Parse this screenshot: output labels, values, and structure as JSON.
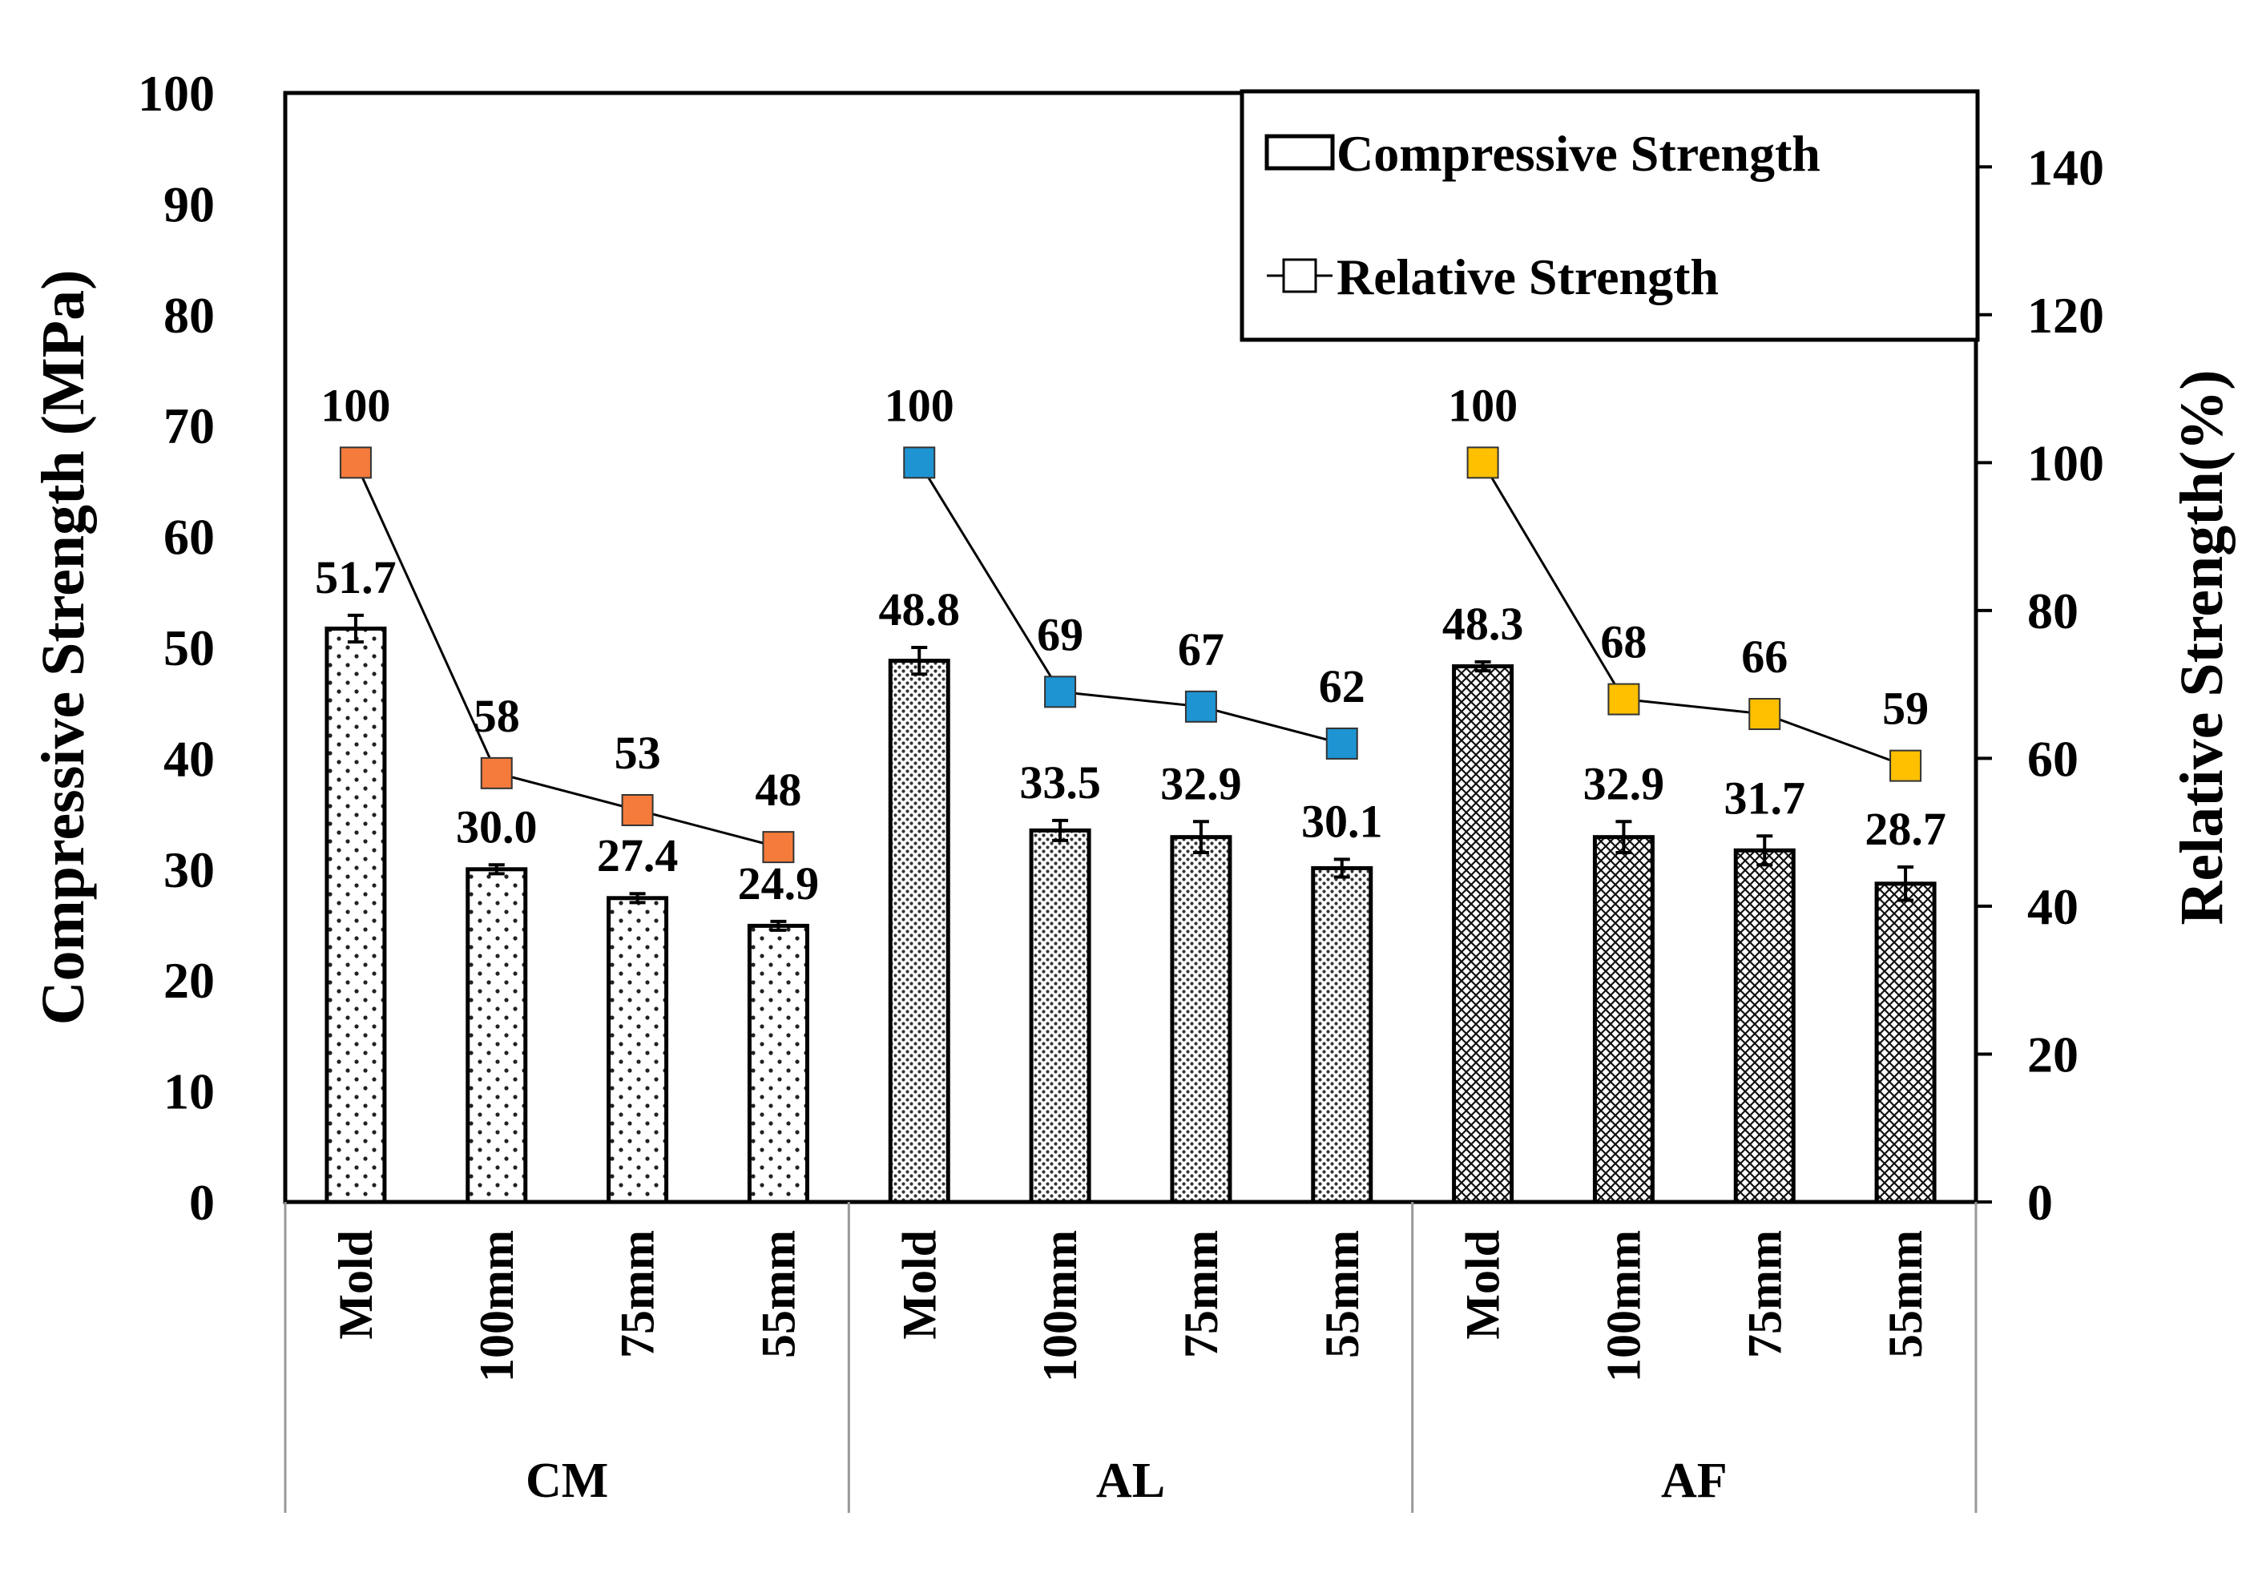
{
  "chart_data": {
    "type": "bar",
    "groups": [
      {
        "name": "CM",
        "categories": [
          "Mold",
          "100mm",
          "75mm",
          "55mm"
        ],
        "compressive": [
          51.7,
          30.0,
          27.4,
          24.9
        ],
        "error": [
          1.2,
          0.4,
          0.4,
          0.4
        ],
        "relative": [
          100,
          58,
          53,
          48
        ],
        "color": "#F47B3B",
        "pattern": "sparse-dots"
      },
      {
        "name": "AL",
        "categories": [
          "Mold",
          "100mm",
          "75mm",
          "55mm"
        ],
        "compressive": [
          48.8,
          33.5,
          32.9,
          30.1
        ],
        "error": [
          1.2,
          0.9,
          1.4,
          0.8
        ],
        "relative": [
          100,
          69,
          67,
          62
        ],
        "color": "#1E94D2",
        "pattern": "dense-dots"
      },
      {
        "name": "AF",
        "categories": [
          "Mold",
          "100mm",
          "75mm",
          "55mm"
        ],
        "compressive": [
          48.3,
          32.9,
          31.7,
          28.7
        ],
        "error": [
          0.4,
          1.4,
          1.3,
          1.5
        ],
        "relative": [
          100,
          68,
          66,
          59
        ],
        "color": "#FFC000",
        "pattern": "crosshatch"
      }
    ],
    "compressive_labels": [
      [
        "51.7",
        "30.0",
        "27.4",
        "24.9"
      ],
      [
        "48.8",
        "33.5",
        "32.9",
        "30.1"
      ],
      [
        "48.3",
        "32.9",
        "31.7",
        "28.7"
      ]
    ],
    "relative_labels": [
      [
        "100",
        "58",
        "53",
        "48"
      ],
      [
        "100",
        "69",
        "67",
        "62"
      ],
      [
        "100",
        "68",
        "66",
        "59"
      ]
    ],
    "y_left": {
      "label": "Compressive Strength (MPa)",
      "min": 0,
      "max": 100,
      "step": 10,
      "ticks": [
        "0",
        "10",
        "20",
        "30",
        "40",
        "50",
        "60",
        "70",
        "80",
        "90",
        "100"
      ]
    },
    "y_right": {
      "label": "Relative Strength(%)",
      "min": 0,
      "max": 150,
      "step": 20,
      "ticks": [
        "0",
        "20",
        "40",
        "60",
        "80",
        "100",
        "120",
        "140"
      ]
    },
    "legend": {
      "bar": "Compressive Strength",
      "line": "Relative Strength",
      "position": "top-right"
    },
    "grid": false
  }
}
